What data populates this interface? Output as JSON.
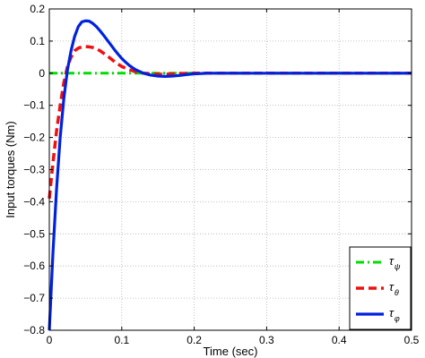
{
  "chart_data": {
    "type": "line",
    "title": "",
    "xlabel": "Time (sec)",
    "ylabel": "Input torques (Nm)",
    "xlim": [
      0,
      0.5
    ],
    "ylim": [
      -0.8,
      0.2
    ],
    "grid": true,
    "grid_style": "dotted",
    "legend_position": "bottom-right",
    "x_ticks": [
      0,
      0.1,
      0.2,
      0.3,
      0.4,
      0.5
    ],
    "x_tick_labels": [
      "0",
      "0.1",
      "0.2",
      "0.3",
      "0.4",
      "0.5"
    ],
    "y_ticks": [
      0.2,
      0.1,
      0,
      -0.1,
      -0.2,
      -0.3,
      -0.4,
      -0.5,
      -0.6,
      -0.7,
      -0.8
    ],
    "y_tick_labels": [
      "0.2",
      "0.1",
      "0",
      "−0.1",
      "−0.2",
      "−0.3",
      "−0.4",
      "−0.5",
      "−0.6",
      "−0.7",
      "−0.8"
    ],
    "series": [
      {
        "name": "τψ",
        "symbol": "τ",
        "subscript": "ψ",
        "color": "#00dd00",
        "line_style": "dash-dot",
        "x": [
          0,
          0.5
        ],
        "y": [
          0,
          0
        ]
      },
      {
        "name": "τθ",
        "symbol": "τ",
        "subscript": "θ",
        "color": "#ee1111",
        "line_style": "dashed",
        "x": [
          0,
          0.005,
          0.01,
          0.015,
          0.02,
          0.025,
          0.03,
          0.035,
          0.04,
          0.045,
          0.05,
          0.055,
          0.06,
          0.065,
          0.07,
          0.075,
          0.08,
          0.085,
          0.09,
          0.095,
          0.1,
          0.11,
          0.12,
          0.13,
          0.14,
          0.15,
          0.16,
          0.17,
          0.18,
          0.2,
          0.22,
          0.25,
          0.3,
          0.5
        ],
        "y": [
          -0.39,
          -0.28,
          -0.18,
          -0.1,
          -0.03,
          0.02,
          0.05,
          0.07,
          0.078,
          0.082,
          0.083,
          0.082,
          0.08,
          0.076,
          0.07,
          0.062,
          0.054,
          0.045,
          0.036,
          0.028,
          0.021,
          0.011,
          0.004,
          0.0,
          -0.002,
          -0.003,
          -0.003,
          -0.002,
          -0.001,
          0.0,
          0.0,
          0.0,
          0.0,
          0.0
        ]
      },
      {
        "name": "τφ",
        "symbol": "τ",
        "subscript": "φ",
        "color": "#0022dd",
        "line_style": "solid",
        "x": [
          0,
          0.005,
          0.01,
          0.015,
          0.02,
          0.025,
          0.03,
          0.035,
          0.04,
          0.045,
          0.05,
          0.055,
          0.06,
          0.065,
          0.07,
          0.075,
          0.08,
          0.085,
          0.09,
          0.095,
          0.1,
          0.105,
          0.11,
          0.115,
          0.12,
          0.13,
          0.14,
          0.15,
          0.16,
          0.17,
          0.18,
          0.19,
          0.2,
          0.22,
          0.25,
          0.3,
          0.5
        ],
        "y": [
          -0.8,
          -0.56,
          -0.36,
          -0.2,
          -0.08,
          0.01,
          0.07,
          0.115,
          0.145,
          0.16,
          0.163,
          0.162,
          0.155,
          0.145,
          0.132,
          0.118,
          0.103,
          0.088,
          0.073,
          0.059,
          0.046,
          0.035,
          0.025,
          0.017,
          0.01,
          0.0,
          -0.006,
          -0.009,
          -0.01,
          -0.009,
          -0.007,
          -0.004,
          -0.002,
          0.0,
          0.0,
          0.0,
          0.0
        ]
      }
    ]
  }
}
